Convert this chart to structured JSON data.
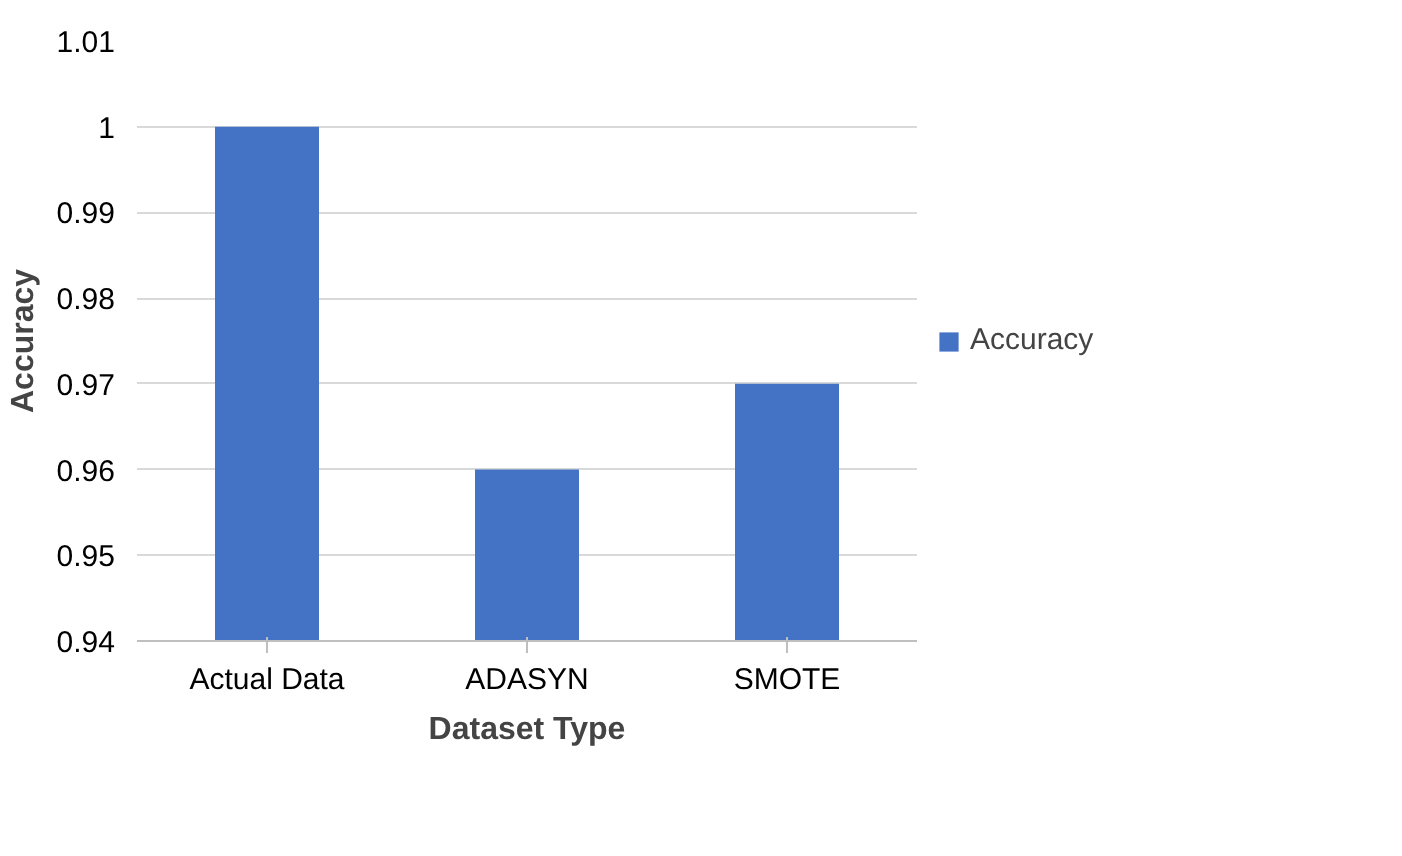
{
  "chart_data": {
    "type": "bar",
    "xlabel": "Dataset Type",
    "ylabel": "Accuracy",
    "categories": [
      "Actual Data",
      "ADASYN",
      "SMOTE"
    ],
    "series": [
      {
        "name": "Accuracy",
        "color": "#4472c4",
        "values": [
          1,
          0.96,
          0.97
        ]
      }
    ],
    "ylim": [
      0.94,
      1.01
    ],
    "yticks": [
      0.94,
      0.95,
      0.96,
      0.97,
      0.98,
      0.99,
      1,
      1.01
    ],
    "grid": "y",
    "legend": "right"
  }
}
